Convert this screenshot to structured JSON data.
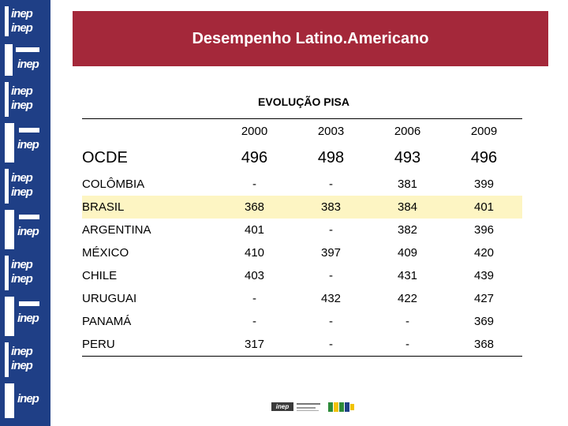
{
  "header": {
    "title": "Desempenho Latino.Americano"
  },
  "subtitle": "EVOLUÇÃO PISA",
  "table": {
    "years": [
      "2000",
      "2003",
      "2006",
      "2009"
    ],
    "rows": [
      {
        "name": "OCDE",
        "values": [
          "496",
          "498",
          "493",
          "496"
        ]
      },
      {
        "name": "COLÔMBIA",
        "values": [
          "-",
          "-",
          "381",
          "399"
        ]
      },
      {
        "name": "BRASIL",
        "values": [
          "368",
          "383",
          "384",
          "401"
        ]
      },
      {
        "name": "ARGENTINA",
        "values": [
          "401",
          "-",
          "382",
          "396"
        ]
      },
      {
        "name": "MÉXICO",
        "values": [
          "410",
          "397",
          "409",
          "420"
        ]
      },
      {
        "name": "CHILE",
        "values": [
          "403",
          "-",
          "431",
          "439"
        ]
      },
      {
        "name": "URUGUAI",
        "values": [
          "-",
          "432",
          "422",
          "427"
        ]
      },
      {
        "name": "PANAMÁ",
        "values": [
          "-",
          "-",
          "-",
          "369"
        ]
      },
      {
        "name": "PERU",
        "values": [
          "317",
          "-",
          "-",
          "368"
        ]
      }
    ]
  },
  "side_strip": {
    "logo_text": "inep",
    "logo_icon": "inep-logo-strip"
  },
  "footer": {
    "inep_logo": "inep",
    "ministry_logo": "ministry-logo",
    "brasil_logo": "brasil-logo"
  },
  "colors": {
    "banner": "#a4283a",
    "strip": "#1f3f86",
    "highlight_row": "#fdf5c3"
  }
}
